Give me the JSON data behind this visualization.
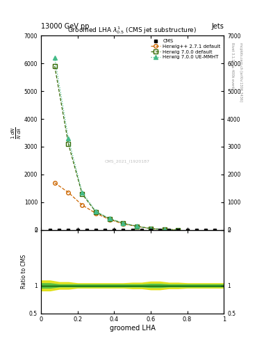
{
  "title": "Groomed LHA $\\lambda^{1}_{0.5}$ (CMS jet substructure)",
  "header_left": "13000 GeV pp",
  "header_right": "Jets",
  "right_label_top": "Rivet 3.1.10, ≥ 400k events",
  "right_label_bottom": "mcplots.cern.ch [arXiv:1306.3436]",
  "watermark": "CMS_2021_I1920187",
  "xlabel": "groomed LHA",
  "ylabel_main": "$\\frac{1}{N}\\frac{dN}{d\\lambda}$",
  "ylabel_ratio": "Ratio to CMS",
  "cms_x": [
    0.05,
    0.1,
    0.15,
    0.2,
    0.25,
    0.3,
    0.35,
    0.4,
    0.45,
    0.5,
    0.55,
    0.6,
    0.65,
    0.7,
    0.75,
    0.8,
    0.85,
    0.9,
    0.95
  ],
  "cms_y": [
    0,
    0,
    0,
    0,
    0,
    0,
    0,
    0,
    0,
    0,
    0,
    0,
    0,
    0,
    0,
    0,
    0,
    0,
    0
  ],
  "herwig271_x": [
    0.075,
    0.15,
    0.225,
    0.3,
    0.375,
    0.45,
    0.525,
    0.6,
    0.675,
    0.75
  ],
  "herwig271_y": [
    1700,
    1350,
    900,
    600,
    380,
    220,
    130,
    50,
    15,
    4
  ],
  "herwig700d_x": [
    0.075,
    0.15,
    0.225,
    0.3,
    0.375,
    0.45,
    0.525,
    0.6,
    0.675,
    0.75
  ],
  "herwig700d_y": [
    5900,
    3100,
    1300,
    650,
    400,
    240,
    130,
    50,
    15,
    4
  ],
  "herwig700u_x": [
    0.075,
    0.15,
    0.225,
    0.3,
    0.375,
    0.45,
    0.525,
    0.6,
    0.675,
    0.75
  ],
  "herwig700u_y": [
    6200,
    3300,
    1350,
    680,
    410,
    250,
    135,
    52,
    16,
    4
  ],
  "ylim_main": [
    0,
    7000
  ],
  "ylim_ratio": [
    0.5,
    2.0
  ],
  "yticks_main": [
    0,
    1000,
    2000,
    3000,
    4000,
    5000,
    6000,
    7000
  ],
  "cms_color": "#000000",
  "herwig271_color": "#cc6600",
  "herwig700d_color": "#336600",
  "herwig700u_color": "#44bb88",
  "ratio_yellow_color": "#dddd00",
  "ratio_green_color": "#44bb44",
  "bg_color": "#ffffff",
  "ratio_band_x": [
    0.0,
    0.05,
    0.1,
    0.15,
    0.2,
    0.25,
    0.3,
    0.35,
    0.4,
    0.45,
    0.5,
    0.55,
    0.6,
    0.65,
    0.7,
    0.75,
    0.8,
    0.85,
    0.9,
    0.95,
    1.0
  ],
  "ratio_yellow_up": [
    1.09,
    1.09,
    1.06,
    1.06,
    1.04,
    1.04,
    1.04,
    1.04,
    1.04,
    1.04,
    1.05,
    1.05,
    1.07,
    1.07,
    1.05,
    1.05,
    1.04,
    1.04,
    1.04,
    1.04,
    1.04
  ],
  "ratio_yellow_dn": [
    0.91,
    0.91,
    0.94,
    0.94,
    0.96,
    0.96,
    0.96,
    0.96,
    0.96,
    0.96,
    0.95,
    0.95,
    0.93,
    0.93,
    0.95,
    0.95,
    0.96,
    0.96,
    0.96,
    0.96,
    0.96
  ],
  "ratio_green_up": [
    1.04,
    1.04,
    1.02,
    1.02,
    1.02,
    1.02,
    1.02,
    1.02,
    1.02,
    1.02,
    1.02,
    1.02,
    1.03,
    1.03,
    1.02,
    1.02,
    1.02,
    1.02,
    1.02,
    1.02,
    1.02
  ],
  "ratio_green_dn": [
    0.96,
    0.96,
    0.98,
    0.98,
    0.98,
    0.98,
    0.98,
    0.98,
    0.98,
    0.98,
    0.98,
    0.98,
    0.97,
    0.97,
    0.98,
    0.98,
    0.98,
    0.98,
    0.98,
    0.98,
    0.98
  ]
}
